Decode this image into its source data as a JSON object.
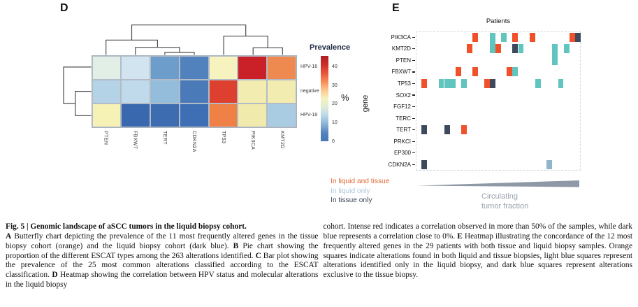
{
  "figure": {
    "panel_d_label": "D",
    "panel_e_label": "E"
  },
  "chart_data": [
    {
      "id": "panel_d_hpv_heatmap",
      "type": "heatmap",
      "title": "Prevalence",
      "unit": "%",
      "columns": [
        "PTEN",
        "FBXW7",
        "TERT",
        "CDKN2A",
        "TP53",
        "PIK3CA",
        "KMT2D"
      ],
      "rows": [
        "HPV-16",
        "negative",
        "HPV-18"
      ],
      "values_pct": [
        [
          16,
          14,
          8,
          4,
          24,
          45,
          33
        ],
        [
          12,
          13,
          10,
          3,
          40,
          23,
          23
        ],
        [
          22,
          1,
          1,
          2,
          33,
          23,
          12
        ]
      ],
      "cell_colors": [
        [
          "#e1efe6",
          "#d2e4f0",
          "#6d9dcb",
          "#5282bd",
          "#f6f3bf",
          "#ca2027",
          "#ee8a4f"
        ],
        [
          "#b5d3e7",
          "#c0daec",
          "#93bddb",
          "#4b7ab8",
          "#dd402f",
          "#f3ecb0",
          "#f3ecb0"
        ],
        [
          "#f6f1b5",
          "#3a68ae",
          "#3d6cb1",
          "#3e6eb3",
          "#ef8147",
          "#f1eaad",
          "#a9cce2"
        ]
      ],
      "colorbar": {
        "ticks": [
          "40",
          "30",
          "20",
          "10",
          "0"
        ],
        "tick_values": [
          40,
          30,
          20,
          10,
          0
        ],
        "min": 0,
        "max": 46,
        "gradient_top_to_bottom": [
          "#ad1e27",
          "#cc2d27",
          "#e8543a",
          "#f68a56",
          "#fbc98f",
          "#f7f2c0",
          "#dfedd8",
          "#b9d7e8",
          "#8ab2d6",
          "#5484be",
          "#4478b5"
        ]
      },
      "col_dendrogram": "((PTEN,(FBXW7,(TERT,CDKN2A))),(TP53,(PIK3CA,KMT2D)))",
      "row_dendrogram": "(HPV-16,(negative,HPV-18))"
    },
    {
      "id": "panel_e_concordance",
      "type": "heatmap",
      "xlabel": "Patients",
      "ylabel": "gene",
      "n_patients": 29,
      "genes": [
        "PIK3CA",
        "KMT2D",
        "PTEN",
        "FBXW7",
        "TP53",
        "SOX2",
        "FGF12",
        "TERC",
        "TERT",
        "PRKCI",
        "EP300",
        "CDKN2A"
      ],
      "status_colors": {
        "both": "#f0512a",
        "liquid": "#5fc5be",
        "tissue": "#3d4a5d",
        "liquid_faded": "#8fb6cb"
      },
      "tiles": [
        {
          "gene": "PIK3CA",
          "patient": 11,
          "status": "both"
        },
        {
          "gene": "PIK3CA",
          "patient": 14,
          "status": "liquid",
          "rows": 2
        },
        {
          "gene": "PIK3CA",
          "patient": 16,
          "status": "liquid"
        },
        {
          "gene": "PIK3CA",
          "patient": 18,
          "status": "both"
        },
        {
          "gene": "PIK3CA",
          "patient": 21,
          "status": "both"
        },
        {
          "gene": "PIK3CA",
          "patient": 28,
          "status": "both"
        },
        {
          "gene": "PIK3CA",
          "patient": 29,
          "status": "tissue"
        },
        {
          "gene": "KMT2D",
          "patient": 10,
          "status": "both"
        },
        {
          "gene": "KMT2D",
          "patient": 15,
          "status": "both"
        },
        {
          "gene": "KMT2D",
          "patient": 18,
          "status": "tissue"
        },
        {
          "gene": "KMT2D",
          "patient": 19,
          "status": "liquid"
        },
        {
          "gene": "KMT2D",
          "patient": 25,
          "status": "liquid",
          "rows": 2
        },
        {
          "gene": "KMT2D",
          "patient": 27,
          "status": "liquid"
        },
        {
          "gene": "FBXW7",
          "patient": 8,
          "status": "both"
        },
        {
          "gene": "FBXW7",
          "patient": 11,
          "status": "both"
        },
        {
          "gene": "FBXW7",
          "patient": 17,
          "status": "both"
        },
        {
          "gene": "FBXW7",
          "patient": 18,
          "status": "liquid"
        },
        {
          "gene": "TP53",
          "patient": 2,
          "status": "both"
        },
        {
          "gene": "TP53",
          "patient": 5,
          "status": "liquid"
        },
        {
          "gene": "TP53",
          "patient": 6,
          "status": "liquid"
        },
        {
          "gene": "TP53",
          "patient": 7,
          "status": "liquid"
        },
        {
          "gene": "TP53",
          "patient": 9,
          "status": "liquid"
        },
        {
          "gene": "TP53",
          "patient": 13,
          "status": "both"
        },
        {
          "gene": "TP53",
          "patient": 14,
          "status": "tissue"
        },
        {
          "gene": "TP53",
          "patient": 22,
          "status": "liquid"
        },
        {
          "gene": "TP53",
          "patient": 26,
          "status": "liquid"
        },
        {
          "gene": "TERT",
          "patient": 2,
          "status": "tissue"
        },
        {
          "gene": "TERT",
          "patient": 6,
          "status": "tissue"
        },
        {
          "gene": "TERT",
          "patient": 9,
          "status": "both"
        },
        {
          "gene": "CDKN2A",
          "patient": 2,
          "status": "tissue"
        },
        {
          "gene": "CDKN2A",
          "patient": 24,
          "status": "liquid_faded"
        }
      ],
      "legend": [
        {
          "label": "In liquid and tissue",
          "color": "#e4682f"
        },
        {
          "label": "In liquid only",
          "color": "#a8c8df"
        },
        {
          "label": "In tissue only",
          "color": "#3b4558"
        }
      ],
      "annotation": {
        "line1": "Circulating",
        "line2": "tumor fraction"
      },
      "wedge_color": "#8e98a6"
    }
  ],
  "caption": {
    "title": "Fig. 5 | Genomic landscape of aSCC tumors in the liquid biopsy cohort.",
    "left_segments": [
      {
        "t": "A",
        "b": true
      },
      {
        "t": " Butterfly chart depicting the prevalence of the 11 most frequently altered genes in the tissue biopsy cohort (orange) and the liquid biopsy cohort (dark blue). "
      },
      {
        "t": "B",
        "b": true
      },
      {
        "t": " Pie chart showing the proportion of the different ESCAT types among the 263 alterations identified. "
      },
      {
        "t": "C",
        "b": true
      },
      {
        "t": " Bar plot showing the prevalence of the 25 most common alterations classified according to the ESCAT classification. "
      },
      {
        "t": "D",
        "b": true
      },
      {
        "t": " Heatmap showing the correlation between HPV status and molecular alterations in the liquid biopsy"
      }
    ],
    "right_segments": [
      {
        "t": "cohort. Intense red indicates a correlation observed in more than 50% of the samples, while dark blue represents a correlation close to 0%. "
      },
      {
        "t": "E",
        "b": true
      },
      {
        "t": " Heatmap illustrating the concordance of the 12 most frequently altered genes in the 29 patients with both tissue and liquid biopsy samples. Orange squares indicate alterations found in both liquid and tissue biopsies, light blue squares represent alterations identified only in the liquid biopsy, and dark blue squares represent alterations exclusive to the tissue biopsy."
      }
    ]
  }
}
